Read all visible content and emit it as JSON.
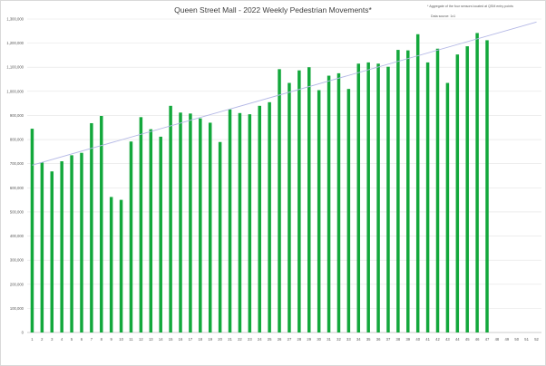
{
  "chart_data": {
    "type": "bar",
    "title": "Queen Street Mall - 2022 Weekly Pedestrian Movements*",
    "footnote": "* Aggregate of the four sensors located at QSM entry points",
    "source": "Data source: 1x1",
    "categories": [
      "1",
      "2",
      "3",
      "4",
      "5",
      "6",
      "7",
      "8",
      "9",
      "10",
      "11",
      "12",
      "13",
      "14",
      "15",
      "16",
      "17",
      "18",
      "19",
      "20",
      "21",
      "22",
      "23",
      "24",
      "25",
      "26",
      "27",
      "28",
      "29",
      "30",
      "31",
      "32",
      "33",
      "34",
      "35",
      "36",
      "37",
      "38",
      "39",
      "40",
      "41",
      "42",
      "43",
      "44",
      "45",
      "46",
      "47",
      "48",
      "49",
      "50",
      "51",
      "52"
    ],
    "values": [
      845000,
      705000,
      668000,
      710000,
      735000,
      745000,
      868000,
      898000,
      562000,
      550000,
      792000,
      893000,
      843000,
      812000,
      940000,
      912000,
      908000,
      888000,
      870000,
      790000,
      925000,
      910000,
      905000,
      940000,
      955000,
      1092000,
      1035000,
      1087000,
      1100000,
      1005000,
      1065000,
      1075000,
      1010000,
      1115000,
      1120000,
      1115000,
      1102000,
      1172000,
      1170000,
      1237000,
      1120000,
      1177000,
      1035000,
      1153000,
      1187000,
      1242000,
      1212000,
      null,
      null,
      null,
      null,
      null
    ],
    "ylim": [
      0,
      1300000
    ],
    "yticks": [
      "0",
      "100,000",
      "200,000",
      "300,000",
      "400,000",
      "500,000",
      "600,000",
      "700,000",
      "800,000",
      "900,000",
      "1,000,000",
      "1,100,000",
      "1,200,000",
      "1,300,000"
    ],
    "trendline": {
      "type": "linear",
      "color": "#b4b8e6"
    },
    "grid": true,
    "legend": "none",
    "bar_color": "#13a83c"
  }
}
